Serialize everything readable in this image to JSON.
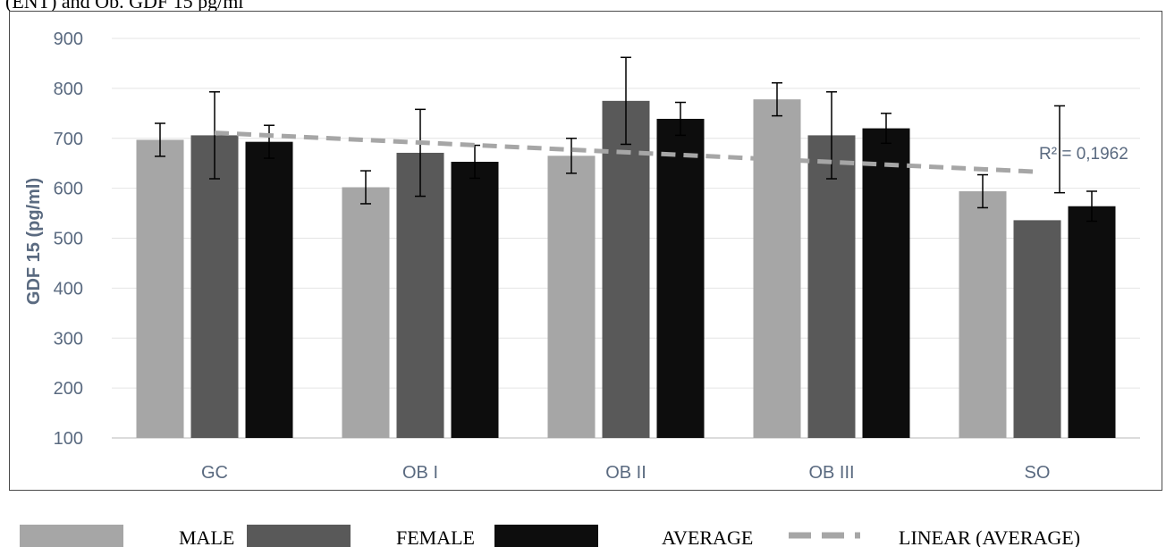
{
  "top_text": "(ENT) and Ob. GDF 15 pg/ml",
  "colors": {
    "male": "#a6a6a6",
    "female": "#595959",
    "average": "#0d0d0d",
    "trend": "#a6a6a6",
    "axis_text": "#5a6a80"
  },
  "chart_data": {
    "type": "bar",
    "categories": [
      "GC",
      "OB I",
      "OB II",
      "OB III",
      "SO"
    ],
    "ylabel": "GDF 15 (pg/ml)",
    "xlabel": "",
    "ylim": [
      100,
      900
    ],
    "yticks": [
      100,
      200,
      300,
      400,
      500,
      600,
      700,
      800,
      900
    ],
    "grid": true,
    "legend_position": "bottom",
    "series": [
      {
        "name": "MALE",
        "values": [
          697,
          602,
          665,
          778,
          594
        ],
        "errors": [
          33,
          33,
          35,
          33,
          33
        ]
      },
      {
        "name": "FEMALE",
        "values": [
          706,
          671,
          775,
          706,
          536
        ],
        "errors": [
          87,
          87,
          87,
          87,
          0
        ]
      },
      {
        "name": "AVERAGE",
        "values": [
          693,
          653,
          739,
          720,
          564
        ],
        "errors": [
          33,
          33,
          33,
          30,
          30
        ]
      }
    ],
    "trendline": {
      "name": "LINEAR (AVERAGE)",
      "start": 711,
      "end": 633,
      "annotation": "R² = 0,1962",
      "r_squared_error_bar": {
        "center": 678,
        "error": 87
      }
    }
  }
}
